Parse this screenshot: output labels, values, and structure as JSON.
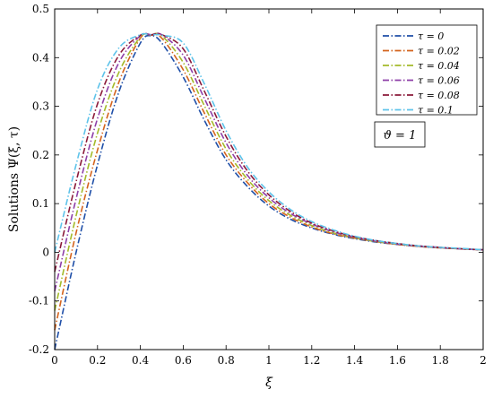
{
  "chart_data": {
    "type": "line",
    "title": "",
    "xlabel": "ξ",
    "ylabel": "Solutions Ψ(ξ, τ)",
    "xlim": [
      0,
      2
    ],
    "ylim": [
      -0.2,
      0.5
    ],
    "xticks": [
      "0",
      "0.2",
      "0.4",
      "0.6",
      "0.8",
      "1",
      "1.2",
      "1.4",
      "1.6",
      "1.8",
      "2"
    ],
    "yticks": [
      "-0.2",
      "-0.1",
      "0",
      "0.1",
      "0.2",
      "0.3",
      "0.4",
      "0.5"
    ],
    "grid": false,
    "legend_position": "top-right",
    "annotation": "ϑ = 1",
    "x": [
      0,
      0.1,
      0.2,
      0.3,
      0.4,
      0.45,
      0.5,
      0.6,
      0.7,
      0.8,
      0.9,
      1.0,
      1.1,
      1.2,
      1.3,
      1.4,
      1.5,
      1.6,
      1.7,
      1.8,
      1.9,
      2.0
    ],
    "series": [
      {
        "name": "τ = 0",
        "color": "#1f4fa8",
        "values": [
          -0.2,
          0.0,
          0.18,
          0.33,
          0.43,
          0.445,
          0.43,
          0.36,
          0.27,
          0.19,
          0.135,
          0.095,
          0.068,
          0.05,
          0.037,
          0.028,
          0.021,
          0.016,
          0.012,
          0.009,
          0.007,
          0.005
        ]
      },
      {
        "name": "τ = 0.02",
        "color": "#d4641e",
        "values": [
          -0.16,
          0.04,
          0.21,
          0.35,
          0.44,
          0.446,
          0.44,
          0.375,
          0.285,
          0.2,
          0.143,
          0.1,
          0.072,
          0.052,
          0.038,
          0.029,
          0.022,
          0.016,
          0.012,
          0.009,
          0.007,
          0.005
        ]
      },
      {
        "name": "τ = 0.04",
        "color": "#a4ba2a",
        "values": [
          -0.12,
          0.075,
          0.245,
          0.37,
          0.442,
          0.447,
          0.445,
          0.39,
          0.3,
          0.212,
          0.15,
          0.106,
          0.076,
          0.055,
          0.04,
          0.03,
          0.022,
          0.017,
          0.013,
          0.01,
          0.007,
          0.005
        ]
      },
      {
        "name": "τ = 0.06",
        "color": "#8e3fa8",
        "values": [
          -0.08,
          0.11,
          0.275,
          0.39,
          0.445,
          0.447,
          0.447,
          0.405,
          0.315,
          0.225,
          0.158,
          0.112,
          0.08,
          0.058,
          0.042,
          0.031,
          0.023,
          0.017,
          0.013,
          0.01,
          0.007,
          0.005
        ]
      },
      {
        "name": "τ = 0.08",
        "color": "#8b1a3a",
        "values": [
          -0.04,
          0.145,
          0.305,
          0.405,
          0.446,
          0.447,
          0.447,
          0.418,
          0.33,
          0.238,
          0.167,
          0.118,
          0.084,
          0.06,
          0.044,
          0.032,
          0.024,
          0.018,
          0.013,
          0.01,
          0.007,
          0.005
        ]
      },
      {
        "name": "τ = 0.1",
        "color": "#5ec3ea",
        "values": [
          0.0,
          0.18,
          0.335,
          0.42,
          0.447,
          0.447,
          0.446,
          0.43,
          0.345,
          0.25,
          0.175,
          0.124,
          0.088,
          0.063,
          0.046,
          0.033,
          0.024,
          0.018,
          0.013,
          0.01,
          0.008,
          0.005
        ]
      }
    ]
  }
}
